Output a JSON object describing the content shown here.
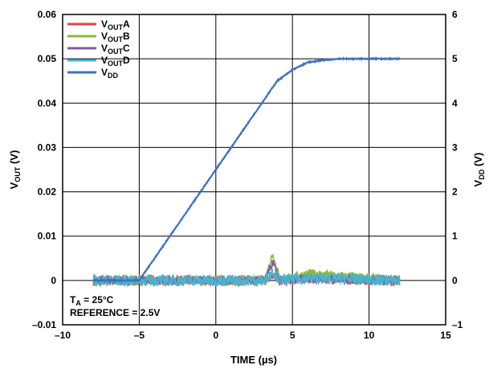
{
  "chart_data": {
    "type": "line",
    "xlabel": "TIME (µs)",
    "ylabel_left": {
      "main": "V",
      "sub": "OUT",
      "unit": " (V)"
    },
    "ylabel_right": {
      "main": "V",
      "sub": "DD",
      "unit": " (V)"
    },
    "xlim": [
      -10,
      15
    ],
    "ylim_left": [
      -0.01,
      0.06
    ],
    "ylim_right": [
      -1,
      6
    ],
    "xticks": [
      "–10",
      "–5",
      "0",
      "5",
      "10",
      "15"
    ],
    "yticks_left": [
      "–0.01",
      "0",
      "0.01",
      "0.02",
      "0.03",
      "0.04",
      "0.05",
      "0.06"
    ],
    "yticks_right": [
      "–1",
      "0",
      "1",
      "2",
      "3",
      "4",
      "5",
      "6"
    ],
    "grid": true,
    "legend_position": "top-left",
    "annotation": {
      "line1_main": "T",
      "line1_sub": "A",
      "line1_rest": " = 25°C",
      "line2": "REFERENCE = 2.5V"
    },
    "series": [
      {
        "name": {
          "main": "V",
          "sub": "OUT",
          "suffix": "A"
        },
        "color": "#d9453f",
        "axis": "left",
        "x": [
          -8,
          -5,
          3.2,
          3.7,
          4.2,
          6.0,
          12
        ],
        "y": [
          0,
          0,
          0,
          0.0015,
          0,
          0.0005,
          0
        ],
        "noise": 0.0024
      },
      {
        "name": {
          "main": "V",
          "sub": "OUT",
          "suffix": "B"
        },
        "color": "#8ab83c",
        "axis": "left",
        "x": [
          -8,
          -5,
          3.2,
          3.7,
          4.2,
          6.0,
          12
        ],
        "y": [
          0,
          0,
          0,
          0.006,
          0,
          0.0015,
          0
        ],
        "noise": 0.0022
      },
      {
        "name": {
          "main": "V",
          "sub": "OUT",
          "suffix": "C"
        },
        "color": "#7d5ba6",
        "axis": "left",
        "x": [
          -8,
          -5,
          3.2,
          3.7,
          4.2,
          6.0,
          12
        ],
        "y": [
          0,
          0,
          0,
          0.004,
          0,
          0.0005,
          0
        ],
        "noise": 0.0018
      },
      {
        "name": {
          "main": "V",
          "sub": "OUT",
          "suffix": "D"
        },
        "color": "#4ab3d1",
        "axis": "left",
        "x": [
          -8,
          -5,
          3.2,
          3.7,
          4.2,
          6.0,
          12
        ],
        "y": [
          0,
          0,
          0,
          0.002,
          0,
          0.0005,
          0
        ],
        "noise": 0.0026
      },
      {
        "name": {
          "main": "V",
          "sub": "DD",
          "suffix": ""
        },
        "color": "#3f72c0",
        "axis": "right",
        "x": [
          -8,
          -5,
          3.0,
          4.0,
          5.0,
          6.0,
          7.0,
          8.0,
          12
        ],
        "y": [
          0,
          0,
          4.0,
          4.5,
          4.75,
          4.92,
          4.97,
          5.0,
          5.0
        ],
        "noise": 0.02
      }
    ]
  }
}
